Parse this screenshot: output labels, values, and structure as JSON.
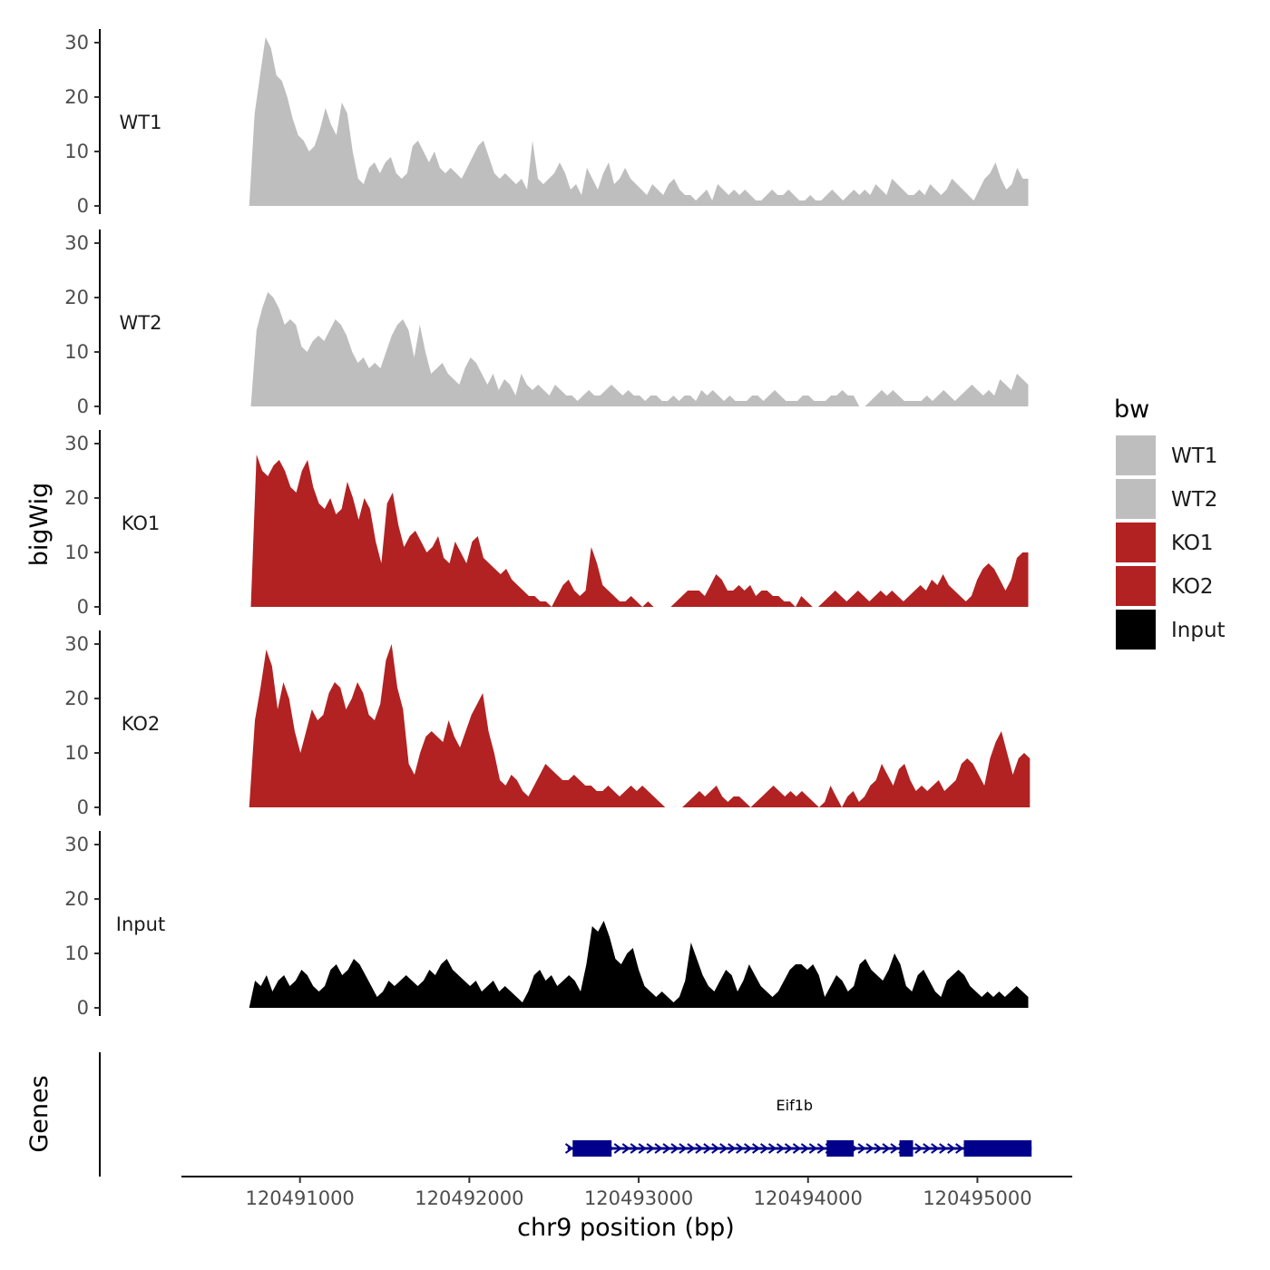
{
  "chart_data": {
    "type": "area",
    "title": "",
    "ylabel": "bigWig",
    "xlabel": "chr9 position (bp)",
    "xlim": [
      120490300,
      120495560
    ],
    "x_ticks": [
      120491000,
      120492000,
      120493000,
      120494000,
      120495000
    ],
    "x_tick_labels": [
      "120491000",
      "120492000",
      "120493000",
      "120494000",
      "120495000"
    ],
    "ylim": [
      0,
      34
    ],
    "y_ticks": [
      0,
      10,
      20,
      30
    ],
    "y_tick_labels": [
      "0",
      "10",
      "20",
      "30"
    ],
    "genes_track_label": "Genes",
    "legend": {
      "title": "bw",
      "position": "right",
      "entries": [
        {
          "label": "WT1",
          "color": "#bebebe"
        },
        {
          "label": "WT2",
          "color": "#bebebe"
        },
        {
          "label": "KO1",
          "color": "#b22222"
        },
        {
          "label": "KO2",
          "color": "#b22222"
        },
        {
          "label": "Input",
          "color": "#000000"
        }
      ]
    },
    "series": [
      {
        "name": "WT1",
        "color": "#bebebe",
        "x_start": 120490700,
        "x_end": 120495300,
        "values": [
          0,
          17,
          24,
          31,
          29,
          24,
          23,
          20,
          16,
          13,
          12,
          10,
          11,
          14,
          18,
          15,
          13,
          19,
          17,
          10,
          5,
          4,
          7,
          8,
          6,
          8,
          9,
          6,
          5,
          6,
          11,
          12,
          10,
          8,
          10,
          7,
          6,
          7,
          6,
          5,
          7,
          9,
          11,
          12,
          9,
          6,
          5,
          6,
          5,
          4,
          5,
          3,
          12,
          5,
          4,
          5,
          6,
          8,
          6,
          3,
          4,
          2,
          7,
          5,
          3,
          6,
          8,
          4,
          5,
          7,
          5,
          4,
          3,
          2,
          4,
          3,
          2,
          4,
          5,
          3,
          2,
          2,
          1,
          2,
          3,
          1,
          4,
          3,
          2,
          3,
          2,
          3,
          2,
          1,
          1,
          2,
          3,
          2,
          2,
          3,
          2,
          1,
          1,
          2,
          1,
          1,
          2,
          3,
          2,
          1,
          2,
          3,
          2,
          3,
          2,
          4,
          3,
          2,
          5,
          4,
          3,
          2,
          2,
          3,
          2,
          4,
          3,
          2,
          3,
          5,
          4,
          3,
          2,
          1,
          3,
          5,
          6,
          8,
          5,
          3,
          4,
          7,
          5,
          5
        ]
      },
      {
        "name": "WT2",
        "color": "#bebebe",
        "x_start": 120490710,
        "x_end": 120495300,
        "values": [
          0,
          14,
          18,
          21,
          20,
          18,
          15,
          16,
          15,
          11,
          10,
          12,
          13,
          12,
          14,
          16,
          15,
          13,
          10,
          8,
          9,
          7,
          8,
          7,
          10,
          13,
          15,
          16,
          14,
          9,
          15,
          10,
          6,
          7,
          8,
          6,
          5,
          4,
          7,
          9,
          8,
          6,
          4,
          6,
          3,
          5,
          4,
          2,
          6,
          4,
          3,
          4,
          3,
          2,
          4,
          3,
          2,
          2,
          1,
          2,
          3,
          2,
          2,
          3,
          4,
          3,
          2,
          3,
          2,
          2,
          1,
          2,
          2,
          1,
          1,
          2,
          1,
          2,
          2,
          1,
          3,
          2,
          3,
          2,
          1,
          2,
          1,
          1,
          1,
          2,
          2,
          1,
          2,
          3,
          2,
          1,
          1,
          1,
          2,
          2,
          1,
          1,
          1,
          2,
          2,
          3,
          2,
          2,
          0,
          0,
          1,
          2,
          3,
          2,
          3,
          2,
          1,
          1,
          1,
          1,
          2,
          1,
          2,
          3,
          2,
          1,
          2,
          3,
          4,
          3,
          2,
          3,
          2,
          5,
          4,
          3,
          6,
          5,
          4
        ]
      },
      {
        "name": "KO1",
        "color": "#b22222",
        "x_start": 120490710,
        "x_end": 120495300,
        "values": [
          0,
          28,
          25,
          24,
          26,
          27,
          25,
          22,
          21,
          25,
          27,
          22,
          19,
          18,
          20,
          17,
          18,
          23,
          20,
          16,
          20,
          18,
          12,
          8,
          19,
          21,
          15,
          11,
          13,
          14,
          12,
          10,
          11,
          13,
          9,
          8,
          12,
          10,
          8,
          12,
          13,
          9,
          8,
          7,
          6,
          7,
          5,
          4,
          3,
          2,
          2,
          1,
          1,
          0,
          2,
          4,
          5,
          3,
          2,
          3,
          11,
          8,
          4,
          3,
          2,
          1,
          1,
          2,
          1,
          0,
          1,
          0,
          0,
          0,
          0,
          1,
          2,
          3,
          3,
          3,
          2,
          4,
          6,
          5,
          3,
          3,
          4,
          3,
          4,
          2,
          3,
          3,
          2,
          2,
          1,
          1,
          0,
          2,
          1,
          0,
          0,
          1,
          2,
          3,
          2,
          1,
          2,
          3,
          2,
          1,
          2,
          3,
          2,
          3,
          2,
          1,
          2,
          3,
          4,
          3,
          5,
          4,
          6,
          4,
          3,
          2,
          1,
          2,
          5,
          7,
          8,
          7,
          5,
          3,
          5,
          9,
          10,
          10
        ]
      },
      {
        "name": "KO2",
        "color": "#b22222",
        "x_start": 120490700,
        "x_end": 120495310,
        "values": [
          0,
          16,
          22,
          29,
          26,
          18,
          23,
          20,
          14,
          10,
          14,
          18,
          16,
          17,
          21,
          23,
          22,
          18,
          20,
          23,
          21,
          17,
          16,
          19,
          27,
          30,
          22,
          18,
          8,
          6,
          10,
          13,
          14,
          13,
          12,
          16,
          13,
          11,
          14,
          17,
          19,
          21,
          14,
          10,
          5,
          4,
          6,
          5,
          3,
          2,
          4,
          6,
          8,
          7,
          6,
          5,
          5,
          6,
          5,
          4,
          4,
          3,
          3,
          4,
          3,
          2,
          3,
          4,
          3,
          4,
          3,
          2,
          1,
          0,
          0,
          0,
          0,
          1,
          2,
          3,
          2,
          3,
          4,
          2,
          1,
          2,
          2,
          1,
          0,
          1,
          2,
          3,
          4,
          3,
          2,
          3,
          2,
          3,
          2,
          1,
          0,
          1,
          4,
          2,
          0,
          2,
          3,
          1,
          2,
          4,
          5,
          8,
          6,
          4,
          7,
          8,
          5,
          3,
          4,
          3,
          4,
          5,
          3,
          4,
          5,
          8,
          9,
          8,
          6,
          4,
          9,
          12,
          14,
          10,
          6,
          9,
          10,
          9
        ]
      },
      {
        "name": "Input",
        "color": "#000000",
        "x_start": 120490700,
        "x_end": 120495300,
        "values": [
          0,
          5,
          4,
          6,
          3,
          5,
          6,
          4,
          5,
          7,
          6,
          4,
          3,
          4,
          7,
          8,
          6,
          7,
          9,
          8,
          6,
          4,
          2,
          3,
          5,
          4,
          5,
          6,
          5,
          4,
          5,
          7,
          6,
          8,
          9,
          7,
          6,
          5,
          4,
          5,
          3,
          4,
          5,
          3,
          4,
          3,
          2,
          1,
          3,
          6,
          7,
          5,
          6,
          4,
          5,
          6,
          5,
          3,
          8,
          15,
          14,
          16,
          13,
          9,
          8,
          10,
          11,
          7,
          4,
          3,
          2,
          3,
          2,
          1,
          2,
          5,
          12,
          9,
          6,
          4,
          3,
          5,
          7,
          6,
          3,
          5,
          8,
          6,
          4,
          3,
          2,
          3,
          5,
          7,
          8,
          8,
          7,
          8,
          6,
          2,
          4,
          6,
          5,
          3,
          4,
          8,
          9,
          7,
          6,
          5,
          7,
          10,
          8,
          4,
          3,
          6,
          7,
          5,
          3,
          2,
          5,
          6,
          7,
          6,
          4,
          3,
          2,
          3,
          2,
          3,
          2,
          3,
          4,
          3,
          2
        ]
      }
    ],
    "genes": [
      {
        "name": "Eif1b",
        "strand": "+",
        "start": 120492580,
        "end": 120495320,
        "exons": [
          [
            120492610,
            120492840
          ],
          [
            120494110,
            120494270
          ],
          [
            120494540,
            120494620
          ],
          [
            120494920,
            120495320
          ]
        ]
      }
    ]
  }
}
